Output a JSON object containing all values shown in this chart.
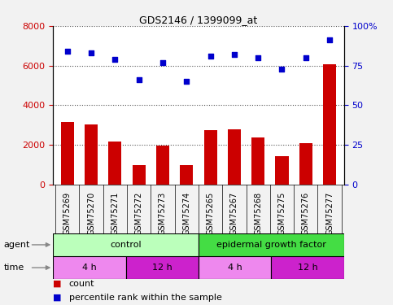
{
  "title": "GDS2146 / 1399099_at",
  "samples": [
    "GSM75269",
    "GSM75270",
    "GSM75271",
    "GSM75272",
    "GSM75273",
    "GSM75274",
    "GSM75265",
    "GSM75267",
    "GSM75268",
    "GSM75275",
    "GSM75276",
    "GSM75277"
  ],
  "counts": [
    3150,
    3050,
    2150,
    1000,
    1950,
    1000,
    2750,
    2800,
    2380,
    1420,
    2100,
    6050
  ],
  "percentile": [
    84,
    83,
    79,
    66,
    77,
    65,
    81,
    82,
    80,
    73,
    80,
    91
  ],
  "bar_color": "#cc0000",
  "dot_color": "#0000cc",
  "left_ylim": [
    0,
    8000
  ],
  "right_ylim": [
    0,
    100
  ],
  "left_yticks": [
    0,
    2000,
    4000,
    6000,
    8000
  ],
  "right_yticks": [
    0,
    25,
    50,
    75,
    100
  ],
  "right_yticklabels": [
    "0",
    "25",
    "50",
    "75",
    "100%"
  ],
  "agent_control": {
    "start": 0,
    "end": 6,
    "label": "control",
    "color": "#bbffbb"
  },
  "agent_egf": {
    "start": 6,
    "end": 12,
    "label": "epidermal growth factor",
    "color": "#44dd44"
  },
  "time_segs": [
    {
      "start": 0,
      "end": 3,
      "label": "4 h",
      "color": "#ee88ee"
    },
    {
      "start": 3,
      "end": 6,
      "label": "12 h",
      "color": "#cc22cc"
    },
    {
      "start": 6,
      "end": 9,
      "label": "4 h",
      "color": "#ee88ee"
    },
    {
      "start": 9,
      "end": 12,
      "label": "12 h",
      "color": "#cc22cc"
    }
  ],
  "grid_color": "#555555",
  "bg_plot": "#ffffff",
  "bg_sample": "#cccccc",
  "bg_figure": "#f2f2f2"
}
